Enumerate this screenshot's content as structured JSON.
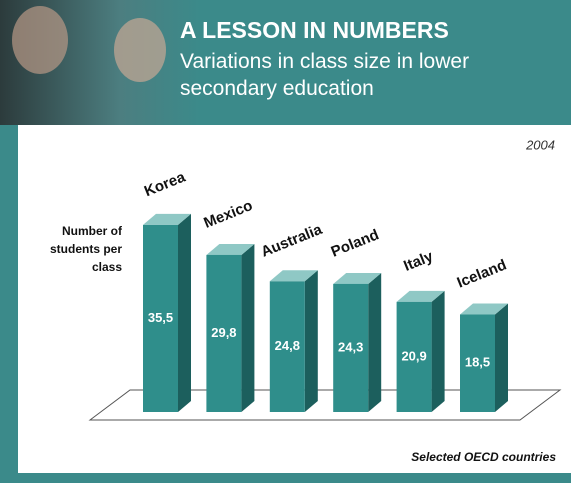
{
  "chart_data": {
    "type": "bar3d",
    "title": "A LESSON IN NUMBERS",
    "subtitle": "Variations in class size in lower secondary education",
    "year": "2004",
    "y_label": "Number of students per class",
    "footnote": "Selected OECD countries",
    "categories": [
      "Korea",
      "Mexico",
      "Australia",
      "Poland",
      "Italy",
      "Iceland"
    ],
    "values": [
      35.5,
      29.8,
      24.8,
      24.3,
      20.9,
      18.5
    ],
    "value_labels": [
      "35,5",
      "29,8",
      "24,8",
      "24,3",
      "20,9",
      "18,5"
    ],
    "color": "#2f8e8b"
  }
}
